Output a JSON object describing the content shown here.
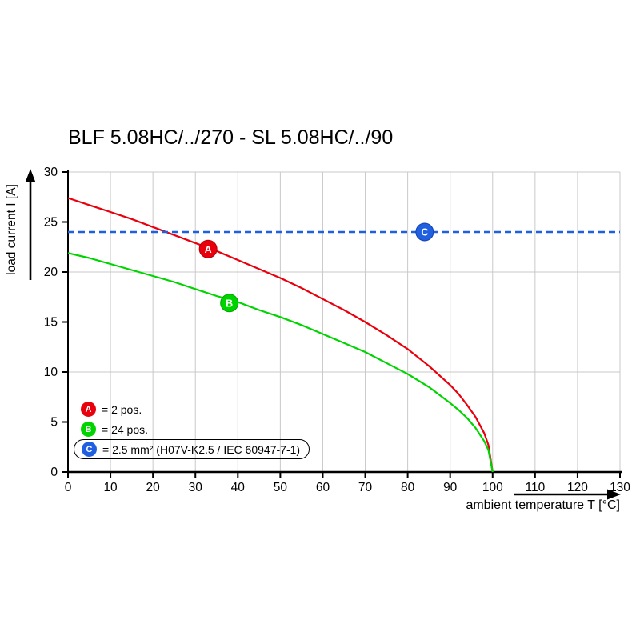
{
  "title": "BLF 5.08HC/../270 - SL 5.08HC/../90",
  "chart_data": {
    "type": "line",
    "title": "BLF 5.08HC/../270 - SL 5.08HC/../90",
    "xlabel": "ambient temperature T [°C]",
    "ylabel": "load current I [A]",
    "xlim": [
      0,
      130
    ],
    "ylim": [
      0,
      30
    ],
    "x_ticks": [
      0,
      10,
      20,
      30,
      40,
      50,
      60,
      70,
      80,
      90,
      100,
      110,
      120,
      130
    ],
    "y_ticks": [
      0,
      5,
      10,
      15,
      20,
      25,
      30
    ],
    "grid": true,
    "grid_color": "#c9c9c9",
    "legend_position": "bottom-left-inside",
    "series": [
      {
        "name": "A",
        "label": "= 2 pos.",
        "color": "#e8000d",
        "ring": "#b4000a",
        "style": "solid",
        "x": [
          0,
          5,
          10,
          15,
          20,
          25,
          30,
          35,
          40,
          45,
          50,
          55,
          60,
          65,
          70,
          75,
          80,
          85,
          90,
          92,
          94,
          96,
          98,
          99,
          100
        ],
        "y": [
          27.4,
          26.7,
          26.0,
          25.3,
          24.5,
          23.7,
          22.9,
          22.1,
          21.2,
          20.3,
          19.4,
          18.4,
          17.3,
          16.2,
          15.0,
          13.7,
          12.3,
          10.6,
          8.7,
          7.8,
          6.7,
          5.5,
          3.9,
          2.7,
          0
        ],
        "marker": {
          "x": 33,
          "y": 22.3
        }
      },
      {
        "name": "B",
        "label": "= 24 pos.",
        "color": "#00d400",
        "ring": "#00a400",
        "style": "solid",
        "x": [
          0,
          5,
          10,
          15,
          20,
          25,
          30,
          35,
          40,
          45,
          50,
          55,
          60,
          65,
          70,
          75,
          80,
          85,
          90,
          92,
          94,
          96,
          98,
          99,
          100
        ],
        "y": [
          21.9,
          21.4,
          20.8,
          20.2,
          19.6,
          19.0,
          18.3,
          17.6,
          17.0,
          16.2,
          15.5,
          14.7,
          13.8,
          12.9,
          12.0,
          10.9,
          9.8,
          8.5,
          6.9,
          6.2,
          5.4,
          4.4,
          3.1,
          2.2,
          0
        ],
        "marker": {
          "x": 38,
          "y": 16.9
        }
      },
      {
        "name": "C",
        "label": "= 2.5 mm² (H07V-K2.5 / IEC 60947-7-1)",
        "color": "#1f5fe0",
        "ring": "#1540b0",
        "style": "dashed",
        "y_const": 24,
        "marker": {
          "x": 84,
          "y": 24
        }
      }
    ]
  }
}
